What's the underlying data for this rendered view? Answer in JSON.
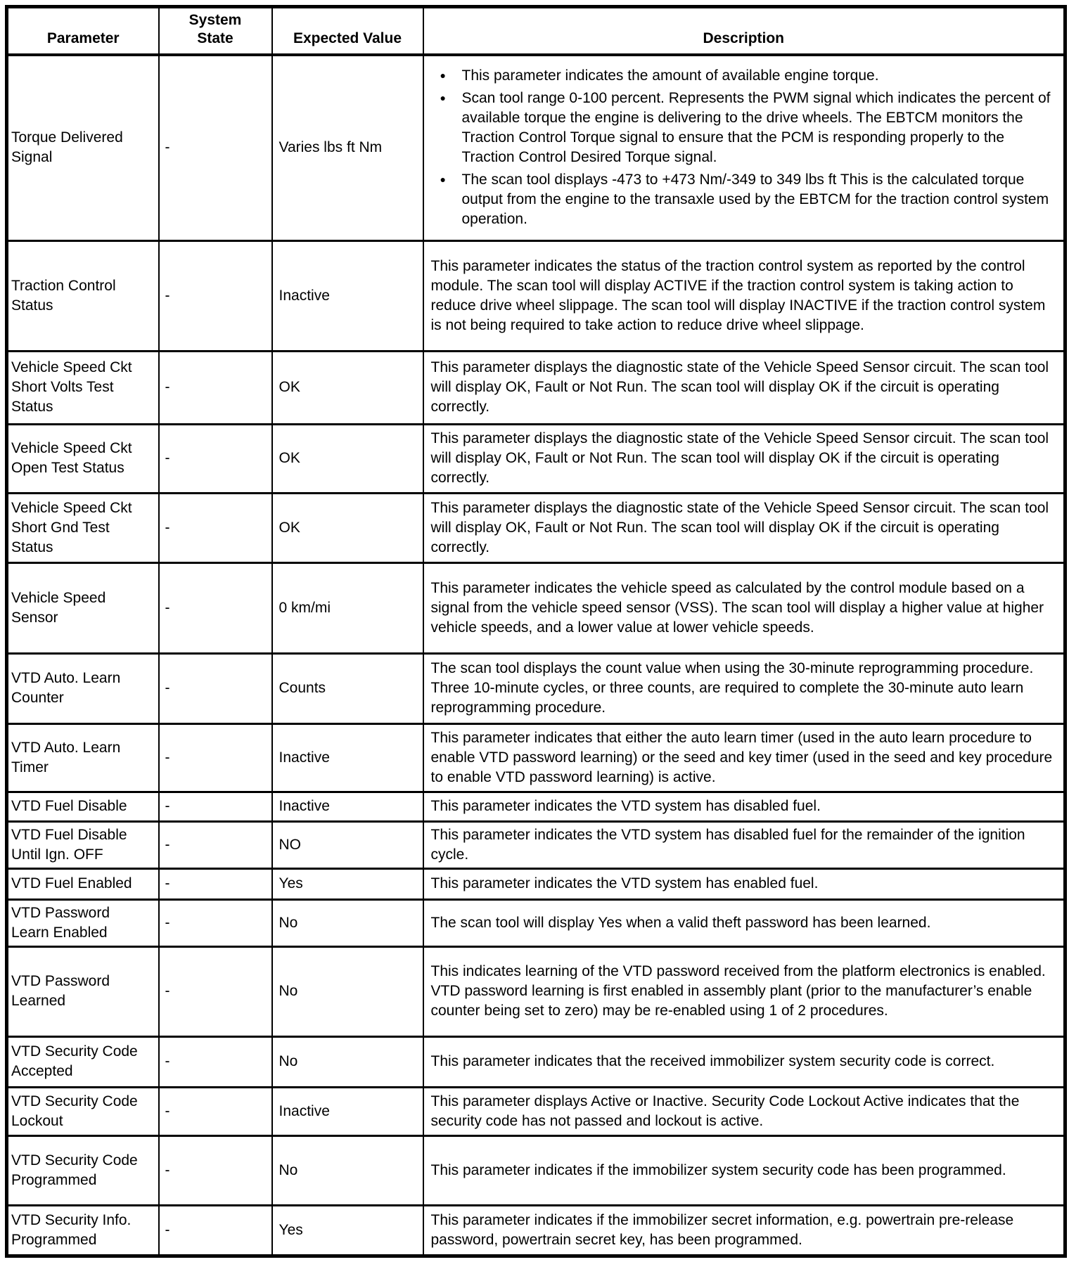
{
  "table": {
    "headers": [
      "Parameter",
      "System State",
      "Expected Value",
      "Description"
    ],
    "rows": [
      {
        "parameter": "Torque Delivered Signal",
        "system_state": "-",
        "expected_value": "Varies lbs ft Nm",
        "bullets": [
          "This parameter indicates the amount of available engine torque.",
          "Scan tool range 0-100 percent. Represents the PWM signal which indicates the percent of available torque the engine is delivering to the drive wheels. The EBTCM monitors the Traction Control Torque signal to ensure that the PCM is responding properly to the Traction Control Desired Torque signal.",
          "The scan tool displays -473 to +473 Nm/-349 to 349 lbs ft This is the calculated torque output from the engine to the transaxle used by the EBTCM for the traction control system operation."
        ]
      },
      {
        "parameter": "Traction Control Status",
        "system_state": "-",
        "expected_value": "Inactive",
        "description": "This parameter indicates the status of the traction control system as reported by the control module. The scan tool will display ACTIVE if the traction control system is taking action to reduce drive wheel slippage. The scan tool will display INACTIVE if the traction control system is not being required to take action to reduce drive wheel slippage."
      },
      {
        "parameter": "Vehicle Speed Ckt Short Volts Test Status",
        "system_state": "-",
        "expected_value": "OK",
        "description": "This parameter displays the diagnostic state of the Vehicle Speed Sensor circuit. The scan tool will display OK, Fault or Not Run. The scan tool will display OK if the circuit is operating correctly."
      },
      {
        "parameter": "Vehicle Speed Ckt Open Test Status",
        "system_state": "-",
        "expected_value": "OK",
        "description": "This parameter displays the diagnostic state of the Vehicle Speed Sensor circuit. The scan tool will display OK, Fault or Not Run. The scan tool will display OK if the circuit is operating correctly."
      },
      {
        "parameter": "Vehicle Speed Ckt Short Gnd Test Status",
        "system_state": "-",
        "expected_value": "OK",
        "description": "This parameter displays the diagnostic state of the Vehicle Speed Sensor circuit. The scan tool will display OK, Fault or Not Run. The scan tool will display OK if the circuit is operating correctly."
      },
      {
        "parameter": "Vehicle Speed Sensor",
        "system_state": "-",
        "expected_value": "0 km/mi",
        "description": "This parameter indicates the vehicle speed as calculated by the control module based on a signal from the vehicle speed sensor (VSS). The scan tool will display a higher value at higher vehicle speeds, and a lower value at lower vehicle speeds."
      },
      {
        "parameter": "VTD Auto. Learn Counter",
        "system_state": "-",
        "expected_value": "Counts",
        "description": "The scan tool displays the count value when using the 30-minute reprogramming procedure. Three 10-minute cycles, or three counts, are required to complete the 30-minute auto learn reprogramming procedure."
      },
      {
        "parameter": "VTD Auto. Learn Timer",
        "system_state": "-",
        "expected_value": "Inactive",
        "description": "This parameter indicates that either the auto learn timer (used in the auto learn procedure to enable VTD password learning) or the seed and key timer (used in the seed and key procedure to enable VTD password learning) is active."
      },
      {
        "parameter": "VTD Fuel Disable",
        "system_state": "-",
        "expected_value": "Inactive",
        "description": "This parameter indicates the VTD system has disabled fuel."
      },
      {
        "parameter": "VTD Fuel Disable Until Ign. OFF",
        "system_state": "-",
        "expected_value": "NO",
        "description": "This parameter indicates the VTD system has disabled fuel for the remainder of the ignition cycle."
      },
      {
        "parameter": "VTD Fuel Enabled",
        "system_state": "-",
        "expected_value": "Yes",
        "description": "This parameter indicates the VTD system has enabled fuel."
      },
      {
        "parameter": "VTD Password Learn Enabled",
        "system_state": "-",
        "expected_value": "No",
        "description": "The scan tool will display Yes when a valid theft password has been learned."
      },
      {
        "parameter": "VTD Password Learned",
        "system_state": "-",
        "expected_value": "No",
        "description": "This indicates learning of the VTD password received from the platform electronics is enabled. VTD password learning is first enabled in assembly plant (prior to the manufacturer’s enable counter being set to zero) may be re-enabled using 1 of 2 procedures."
      },
      {
        "parameter": "VTD Security Code Accepted",
        "system_state": "-",
        "expected_value": "No",
        "description": "This parameter indicates that the received immobilizer system security code is correct."
      },
      {
        "parameter": "VTD Security Code Lockout",
        "system_state": "-",
        "expected_value": "Inactive",
        "description": "This parameter displays Active or Inactive. Security Code Lockout Active indicates that the security code has not passed and lockout is active."
      },
      {
        "parameter": "VTD Security Code Programmed",
        "system_state": "-",
        "expected_value": "No",
        "description": "This parameter indicates if the immobilizer system security code has been programmed."
      },
      {
        "parameter": "VTD Security Info. Programmed",
        "system_state": "-",
        "expected_value": "Yes",
        "description": "This parameter indicates if the immobilizer secret information, e.g. powertrain pre-release password, powertrain secret key, has been programmed."
      }
    ]
  }
}
